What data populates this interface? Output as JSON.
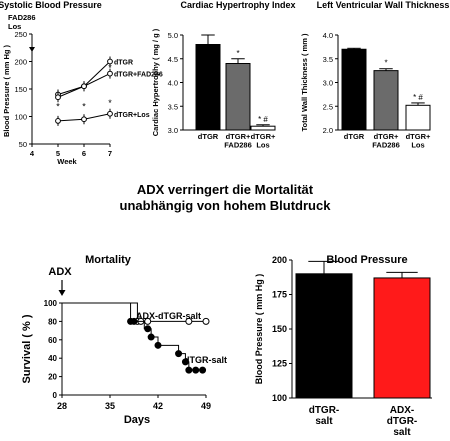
{
  "headline": {
    "line1": "ADX verringert die Mortalität",
    "line2": "unabhängig von hohem Blutdruck"
  },
  "colors": {
    "black": "#000000",
    "gray": "#6b6b6b",
    "red": "#ff1a1a",
    "white": "#ffffff"
  },
  "chart_data": [
    {
      "id": "sbp",
      "type": "line",
      "title": "Systolic Blood Pressure",
      "xlabel": "Week",
      "ylabel": "Blood Pressure ( mm Hg )",
      "x": [
        5,
        6,
        7
      ],
      "xlim": [
        4,
        7
      ],
      "xticks": [
        "4",
        "5",
        "6",
        "7"
      ],
      "ylim": [
        50,
        250
      ],
      "yticks": [
        "50",
        "100",
        "150",
        "200",
        "250"
      ],
      "annotation": "FAD286\nLos",
      "annotation_x": 4,
      "series": [
        {
          "name": "dTGR",
          "values": [
            140,
            155,
            200
          ],
          "marker": "open-circle"
        },
        {
          "name": "dTGR+FAD286",
          "values": [
            135,
            155,
            178
          ],
          "marker": "open-circle"
        },
        {
          "name": "dTGR+Los",
          "values": [
            92,
            95,
            105
          ],
          "marker": "open-circle"
        }
      ],
      "stars": [
        {
          "x": 5,
          "y": 118
        },
        {
          "x": 6,
          "y": 118
        },
        {
          "x": 7,
          "y": 125
        },
        {
          "x": 7,
          "y": 188
        }
      ]
    },
    {
      "id": "cardiac",
      "type": "bar",
      "title": "Cardiac Hypertrophy Index",
      "ylabel": "Cardiac Hypertrophy ( mg / g )",
      "categories": [
        "dTGR",
        "dTGR+\nFAD286",
        "dTGR+\nLos"
      ],
      "values": [
        4.8,
        4.4,
        3.08
      ],
      "errors": [
        0.2,
        0.1,
        0.03
      ],
      "fills": [
        "#000000",
        "#6b6b6b",
        "#ffffff"
      ],
      "marks": [
        "",
        "*",
        "* #"
      ],
      "ylim": [
        3.0,
        5.0
      ],
      "yticks": [
        "3.0",
        "3.5",
        "4.0",
        "4.5",
        "5.0"
      ]
    },
    {
      "id": "wall",
      "type": "bar",
      "title": "Left Ventricular Wall Thickness",
      "ylabel": "Total Wall Thickness ( mm )",
      "categories": [
        "dTGR",
        "dTGR+\nFAD286",
        "dTGR+\nLos"
      ],
      "values": [
        3.7,
        3.25,
        2.52
      ],
      "errors": [
        0.02,
        0.04,
        0.05
      ],
      "fills": [
        "#000000",
        "#6b6b6b",
        "#ffffff"
      ],
      "marks": [
        "",
        "*",
        "* #"
      ],
      "ylim": [
        2.0,
        4.0
      ],
      "yticks": [
        "2.0",
        "2.5",
        "3.0",
        "3.5",
        "4.0"
      ]
    },
    {
      "id": "mortality",
      "type": "line",
      "title": "Mortality",
      "xlabel": "Days",
      "ylabel": "Survival ( % )",
      "annotation": "ADX",
      "annotation_x": 28,
      "xlim": [
        28,
        49
      ],
      "xticks": [
        "28",
        "35",
        "42",
        "49"
      ],
      "ylim": [
        0,
        100
      ],
      "yticks": [
        "0",
        "20",
        "40",
        "60",
        "80",
        "100"
      ],
      "series": [
        {
          "name": "ADX-dTGR-salt",
          "marker": "open-circle",
          "steps": [
            [
              28,
              100
            ],
            [
              39,
              100
            ],
            [
              39,
              80
            ],
            [
              49,
              80
            ]
          ],
          "points": [
            [
              39,
              80
            ],
            [
              39.5,
              80
            ],
            [
              40.5,
              80
            ],
            [
              46.5,
              80
            ],
            [
              49,
              80
            ]
          ]
        },
        {
          "name": "dTGR-salt",
          "marker": "filled-circle",
          "steps": [
            [
              28,
              100
            ],
            [
              38,
              100
            ],
            [
              38,
              80
            ],
            [
              40,
              80
            ],
            [
              40,
              72
            ],
            [
              41,
              72
            ],
            [
              41,
              63
            ],
            [
              42,
              63
            ],
            [
              42,
              54
            ],
            [
              45,
              54
            ],
            [
              45,
              45
            ],
            [
              46,
              45
            ],
            [
              46,
              36
            ],
            [
              46.5,
              36
            ],
            [
              46.5,
              27
            ],
            [
              49,
              27
            ]
          ],
          "points": [
            [
              38,
              80
            ],
            [
              38.5,
              80
            ],
            [
              40.5,
              72
            ],
            [
              41,
              63
            ],
            [
              42,
              54
            ],
            [
              45,
              45
            ],
            [
              46,
              36
            ],
            [
              46.5,
              27
            ],
            [
              47.5,
              27
            ],
            [
              48.5,
              27
            ]
          ]
        }
      ]
    },
    {
      "id": "bp",
      "type": "bar",
      "title": "Blood Pressure",
      "ylabel": "Blood Pressure ( mm Hg )",
      "categories": [
        "dTGR-\nsalt",
        "ADX-\ndTGR-\nsalt"
      ],
      "values": [
        190,
        187
      ],
      "errors": [
        9,
        4
      ],
      "fills": [
        "#000000",
        "#ff1a1a"
      ],
      "ylim": [
        100,
        200
      ],
      "yticks": [
        "100",
        "125",
        "150",
        "175",
        "200"
      ]
    }
  ]
}
